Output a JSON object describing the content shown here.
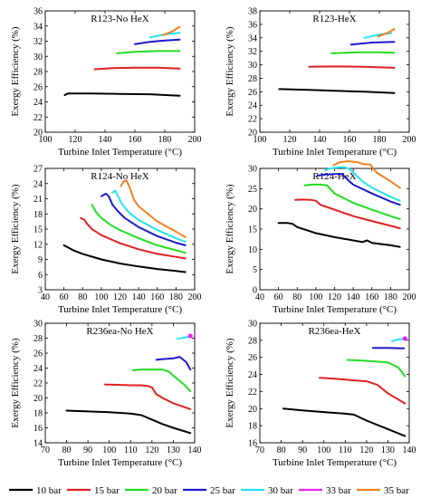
{
  "legend": [
    {
      "name": "10 bar",
      "color": "#000000"
    },
    {
      "name": "15 bar",
      "color": "#e02020"
    },
    {
      "name": "20 bar",
      "color": "#22dd22"
    },
    {
      "name": "25 bar",
      "color": "#1a1acc"
    },
    {
      "name": "30 bar",
      "color": "#22e4ee"
    },
    {
      "name": "33 bar",
      "color": "#ee22ee"
    },
    {
      "name": "35 bar",
      "color": "#f08020"
    }
  ],
  "chart_data": [
    {
      "type": "line",
      "title": "R123-No HeX",
      "xlabel": "Turbine Inlet Temperature (°C)",
      "ylabel": "Exergy Efficiency (%)",
      "xlim": [
        100,
        200
      ],
      "ylim": [
        20,
        36
      ],
      "xticks": [
        100,
        120,
        140,
        160,
        180,
        200
      ],
      "yticks": [
        20,
        22,
        24,
        26,
        28,
        30,
        32,
        34,
        36
      ],
      "series": [
        {
          "name": "10 bar",
          "x": [
            113,
            115,
            130,
            150,
            170,
            190
          ],
          "y": [
            24.9,
            25.1,
            25.1,
            25.05,
            25.0,
            24.8
          ]
        },
        {
          "name": "15 bar",
          "x": [
            133,
            145,
            160,
            175,
            190
          ],
          "y": [
            28.3,
            28.45,
            28.5,
            28.5,
            28.4
          ]
        },
        {
          "name": "20 bar",
          "x": [
            148,
            160,
            175,
            190
          ],
          "y": [
            30.4,
            30.6,
            30.7,
            30.7
          ]
        },
        {
          "name": "25 bar",
          "x": [
            160,
            170,
            180,
            190
          ],
          "y": [
            31.6,
            31.9,
            32.1,
            32.2
          ]
        },
        {
          "name": "30 bar",
          "x": [
            170,
            180,
            190
          ],
          "y": [
            32.5,
            32.9,
            33.1
          ]
        },
        {
          "name": "35 bar",
          "x": [
            179,
            185,
            190
          ],
          "y": [
            32.8,
            33.3,
            33.9
          ]
        }
      ]
    },
    {
      "type": "line",
      "title": "R123-HeX",
      "xlabel": "Turbine Inlet Temperature (°C)",
      "ylabel": "Exergy Efficiency (%)",
      "xlim": [
        100,
        200
      ],
      "ylim": [
        20,
        38
      ],
      "xticks": [
        100,
        120,
        140,
        160,
        180,
        200
      ],
      "yticks": [
        20,
        22,
        24,
        26,
        28,
        30,
        32,
        34,
        36,
        38
      ],
      "series": [
        {
          "name": "10 bar",
          "x": [
            113,
            130,
            150,
            170,
            190
          ],
          "y": [
            26.4,
            26.3,
            26.15,
            26.0,
            25.8
          ]
        },
        {
          "name": "15 bar",
          "x": [
            133,
            150,
            170,
            190
          ],
          "y": [
            29.7,
            29.75,
            29.7,
            29.55
          ]
        },
        {
          "name": "20 bar",
          "x": [
            148,
            165,
            180,
            190
          ],
          "y": [
            31.7,
            31.85,
            31.85,
            31.8
          ]
        },
        {
          "name": "25 bar",
          "x": [
            161,
            175,
            190
          ],
          "y": [
            33.0,
            33.3,
            33.4
          ]
        },
        {
          "name": "30 bar",
          "x": [
            170,
            180,
            188
          ],
          "y": [
            34.0,
            34.5,
            34.7
          ]
        },
        {
          "name": "35 bar",
          "x": [
            179,
            185,
            190
          ],
          "y": [
            34.2,
            34.7,
            35.3
          ]
        }
      ]
    },
    {
      "type": "line",
      "title": "R124-No HeX",
      "xlabel": "Turbine Inlet Temperature (°C)",
      "ylabel": "Exergy Efficiency (%)",
      "xlim": [
        40,
        200
      ],
      "ylim": [
        3,
        27
      ],
      "xticks": [
        40,
        60,
        80,
        100,
        120,
        140,
        160,
        180,
        200
      ],
      "yticks": [
        3,
        6,
        9,
        12,
        15,
        18,
        21,
        24,
        27
      ],
      "series": [
        {
          "name": "10 bar",
          "x": [
            60,
            70,
            80,
            100,
            120,
            140,
            160,
            180,
            190
          ],
          "y": [
            11.8,
            10.8,
            10.1,
            9.0,
            8.2,
            7.6,
            7.1,
            6.7,
            6.5
          ]
        },
        {
          "name": "15 bar",
          "x": [
            78,
            82,
            85,
            90,
            100,
            120,
            140,
            160,
            180,
            190
          ],
          "y": [
            17.2,
            16.8,
            16.0,
            15.0,
            13.8,
            12.2,
            11.0,
            10.1,
            9.5,
            9.2
          ]
        },
        {
          "name": "20 bar",
          "x": [
            90,
            95,
            100,
            110,
            120,
            140,
            160,
            180,
            190
          ],
          "y": [
            19.8,
            18.2,
            17.2,
            15.8,
            14.8,
            13.2,
            11.8,
            10.8,
            10.3
          ]
        },
        {
          "name": "25 bar",
          "x": [
            100,
            105,
            108,
            112,
            118,
            125,
            140,
            160,
            180,
            190
          ],
          "y": [
            21.5,
            22.0,
            21.5,
            19.8,
            18.5,
            17.2,
            15.4,
            13.6,
            12.3,
            11.8
          ]
        },
        {
          "name": "30 bar",
          "x": [
            112,
            115,
            118,
            122,
            130,
            140,
            160,
            180,
            190
          ],
          "y": [
            22.2,
            22.6,
            21.5,
            20.0,
            18.2,
            16.8,
            14.8,
            13.2,
            12.5
          ]
        },
        {
          "name": "35 bar",
          "x": [
            121,
            124,
            127,
            131,
            135,
            140,
            160,
            180,
            190
          ],
          "y": [
            23.5,
            24.4,
            24.6,
            23.0,
            20.8,
            19.5,
            16.5,
            14.5,
            13.4
          ]
        }
      ]
    },
    {
      "type": "line",
      "title": "R124-HeX",
      "xlabel": "Turbine Inlet Temperature (°C)",
      "ylabel": "Exergy Efficiency (%)",
      "xlim": [
        40,
        200
      ],
      "ylim": [
        0,
        30
      ],
      "xticks": [
        40,
        60,
        80,
        100,
        120,
        140,
        160,
        180,
        200
      ],
      "yticks": [
        0,
        5,
        10,
        15,
        20,
        25,
        30
      ],
      "series": [
        {
          "name": "10 bar",
          "x": [
            60,
            70,
            75,
            80,
            100,
            120,
            140,
            150,
            155,
            160,
            180,
            190
          ],
          "y": [
            16.5,
            16.5,
            16.3,
            15.5,
            14.0,
            13.0,
            12.2,
            11.8,
            12.2,
            11.6,
            11.0,
            10.6
          ]
        },
        {
          "name": "15 bar",
          "x": [
            78,
            85,
            95,
            100,
            105,
            120,
            140,
            160,
            180,
            190
          ],
          "y": [
            22.2,
            22.3,
            22.2,
            22.0,
            21.0,
            19.8,
            18.2,
            17.0,
            15.8,
            15.2
          ]
        },
        {
          "name": "20 bar",
          "x": [
            88,
            95,
            105,
            112,
            120,
            140,
            160,
            180,
            190
          ],
          "y": [
            25.8,
            26.0,
            26.0,
            25.8,
            23.8,
            21.5,
            19.8,
            18.2,
            17.5
          ]
        },
        {
          "name": "25 bar",
          "x": [
            102,
            110,
            120,
            128,
            135,
            140,
            160,
            180,
            190
          ],
          "y": [
            28.2,
            28.5,
            28.6,
            28.6,
            27.0,
            26.0,
            23.8,
            21.8,
            21.0
          ]
        },
        {
          "name": "30 bar",
          "x": [
            110,
            115,
            125,
            130,
            135,
            140,
            150,
            160,
            180,
            190
          ],
          "y": [
            29.5,
            30.0,
            30.3,
            30.3,
            30.0,
            29.0,
            26.8,
            25.2,
            23.0,
            22.0
          ]
        },
        {
          "name": "35 bar",
          "x": [
            119,
            125,
            135,
            145,
            152,
            158,
            165,
            180,
            190
          ],
          "y": [
            30.8,
            31.5,
            31.8,
            31.5,
            31.0,
            31.0,
            29.0,
            26.8,
            25.2
          ]
        }
      ]
    },
    {
      "type": "line",
      "title": "R236ea-No HeX",
      "xlabel": "Turbine Inlet Temperature (°C)",
      "ylabel": "Exergy Efficiency (%)",
      "xlim": [
        70,
        140
      ],
      "ylim": [
        14,
        30
      ],
      "xticks": [
        70,
        80,
        90,
        100,
        110,
        120,
        130,
        140
      ],
      "yticks": [
        14,
        16,
        18,
        20,
        22,
        24,
        26,
        28,
        30
      ],
      "series": [
        {
          "name": "10 bar",
          "x": [
            80,
            90,
            100,
            110,
            115,
            120,
            125,
            130,
            138
          ],
          "y": [
            18.3,
            18.2,
            18.1,
            17.9,
            17.7,
            17.1,
            16.5,
            16.0,
            15.3
          ]
        },
        {
          "name": "15 bar",
          "x": [
            98,
            105,
            110,
            115,
            118,
            120,
            122,
            125,
            130,
            138
          ],
          "y": [
            21.8,
            21.75,
            21.7,
            21.7,
            21.6,
            21.4,
            20.5,
            20.0,
            19.3,
            18.5
          ]
        },
        {
          "name": "20 bar",
          "x": [
            111,
            115,
            120,
            125,
            128,
            130,
            135,
            138
          ],
          "y": [
            23.7,
            23.8,
            23.8,
            23.8,
            23.5,
            23.0,
            21.8,
            20.9
          ]
        },
        {
          "name": "25 bar",
          "x": [
            122,
            125,
            130,
            133,
            136,
            138
          ],
          "y": [
            25.1,
            25.2,
            25.3,
            25.5,
            24.8,
            23.8
          ]
        },
        {
          "name": "30 bar",
          "x": [
            132,
            135,
            137.5
          ],
          "y": [
            27.9,
            28.1,
            28.2
          ]
        },
        {
          "name": "33 bar",
          "x": [
            138
          ],
          "y": [
            28.3
          ]
        }
      ]
    },
    {
      "type": "line",
      "title": "R236ea-HeX",
      "xlabel": "Turbine Inlet Temperature (°C)",
      "ylabel": "Exergy Efficiency (%)",
      "xlim": [
        70,
        140
      ],
      "ylim": [
        16,
        30
      ],
      "xticks": [
        70,
        80,
        90,
        100,
        110,
        120,
        130,
        140
      ],
      "yticks": [
        16,
        18,
        20,
        22,
        24,
        26,
        28,
        30
      ],
      "series": [
        {
          "name": "10 bar",
          "x": [
            81,
            90,
            100,
            110,
            114,
            120,
            130,
            138
          ],
          "y": [
            20.0,
            19.8,
            19.6,
            19.4,
            19.3,
            18.6,
            17.6,
            16.8
          ]
        },
        {
          "name": "15 bar",
          "x": [
            98,
            105,
            110,
            115,
            120,
            125,
            130,
            138
          ],
          "y": [
            23.6,
            23.5,
            23.4,
            23.3,
            23.2,
            22.8,
            21.8,
            20.6
          ]
        },
        {
          "name": "20 bar",
          "x": [
            111,
            120,
            125,
            130,
            135,
            138
          ],
          "y": [
            25.7,
            25.6,
            25.5,
            25.4,
            24.8,
            23.8
          ]
        },
        {
          "name": "25 bar",
          "x": [
            123,
            130,
            137.5
          ],
          "y": [
            27.1,
            27.1,
            27.05
          ]
        },
        {
          "name": "30 bar",
          "x": [
            132,
            135,
            137.5
          ],
          "y": [
            27.9,
            28.1,
            28.15
          ]
        },
        {
          "name": "33 bar",
          "x": [
            138
          ],
          "y": [
            28.2
          ]
        }
      ]
    }
  ]
}
